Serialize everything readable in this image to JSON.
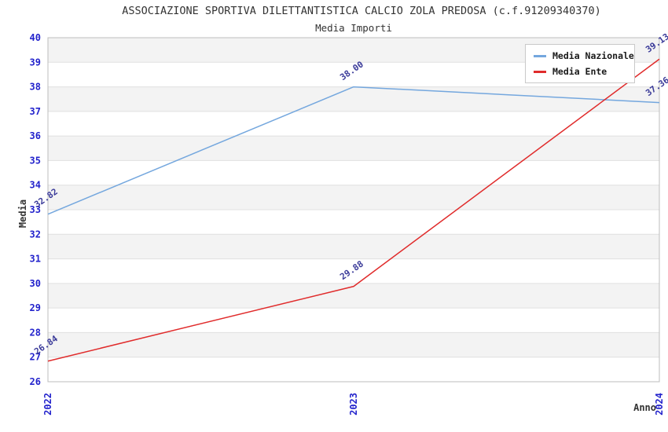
{
  "chart_data": {
    "type": "line",
    "title": "ASSOCIAZIONE SPORTIVA DILETTANTISTICA CALCIO ZOLA PREDOSA (c.f.91209340370)",
    "subtitle": "Media Importi",
    "xlabel": "Anno",
    "ylabel": "Media",
    "categories": [
      "2022",
      "2023",
      "2024"
    ],
    "series": [
      {
        "name": "Media Nazionale",
        "color": "#74a7de",
        "values": [
          32.82,
          38.0,
          37.36
        ]
      },
      {
        "name": "Media Ente",
        "color": "#e02b2b",
        "values": [
          26.84,
          29.88,
          39.13
        ]
      }
    ],
    "ylim": [
      26,
      40
    ],
    "ytick_step": 1,
    "grid": true,
    "alternating_bands": true,
    "legend_position": "top-right",
    "value_label_decimals": 2,
    "colors": {
      "tick_label": "#2323cc",
      "value_label": "#3a3a99",
      "axis_title": "#333333",
      "title": "#333333",
      "band": "#f3f3f3",
      "gridline": "#e0e0e0",
      "frame": "#bdbdbd",
      "background": "#ffffff"
    }
  }
}
